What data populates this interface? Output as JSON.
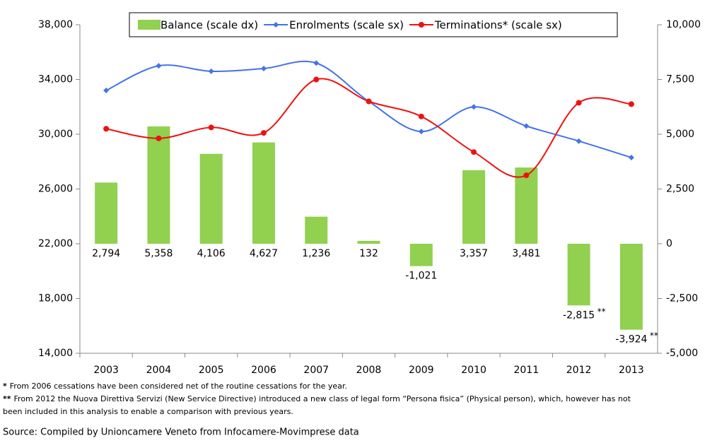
{
  "chart_data": {
    "type": "bar",
    "categories": [
      "2003",
      "2004",
      "2005",
      "2006",
      "2007",
      "2008",
      "2009",
      "2010",
      "2011",
      "2012",
      "2013"
    ],
    "series": [
      {
        "name": "Balance (scale dx)",
        "type": "bar",
        "axis": "y2",
        "color": "#92d050",
        "values": [
          2794,
          5358,
          4106,
          4627,
          1236,
          132,
          -1021,
          3357,
          3481,
          -2815,
          -3924
        ],
        "value_labels": [
          "2,794",
          "5,358",
          "4,106",
          "4,627",
          "1,236",
          "132",
          "-1,021",
          "3,357",
          "3,481",
          "-2,815",
          "-3,924"
        ],
        "value_notes": [
          null,
          null,
          null,
          null,
          null,
          null,
          null,
          null,
          null,
          "**",
          "**"
        ]
      },
      {
        "name": "Enrolments (scale sx)",
        "type": "line",
        "color": "#4472e8",
        "values": [
          33200,
          35000,
          34600,
          34800,
          35200,
          32400,
          30200,
          32000,
          30600,
          29500,
          28300
        ]
      },
      {
        "name": "Terminations* (scale sx)",
        "type": "line",
        "color": "#ee1111",
        "values": [
          30400,
          29700,
          30500,
          30100,
          34000,
          32400,
          31300,
          28700,
          27000,
          32300,
          32200
        ]
      }
    ],
    "ylim": [
      14000,
      38000
    ],
    "yticks": [
      {
        "value": 14000,
        "label": "14,000"
      },
      {
        "value": 18000,
        "label": "18,000"
      },
      {
        "value": 22000,
        "label": "22,000"
      },
      {
        "value": 26000,
        "label": "26,000"
      },
      {
        "value": 30000,
        "label": "30,000"
      },
      {
        "value": 34000,
        "label": "34,000"
      },
      {
        "value": 38000,
        "label": "38,000"
      }
    ],
    "y2lim": [
      -5000,
      10000
    ],
    "y2ticks": [
      {
        "value": -5000,
        "label": "-5,000"
      },
      {
        "value": -2500,
        "label": "-2,500"
      },
      0,
      {
        "value": 2500,
        "label": "2,500"
      },
      {
        "value": 5000,
        "label": "5,000"
      },
      {
        "value": 7500,
        "label": "7,500"
      },
      {
        "value": 10000,
        "label": "10,000"
      }
    ],
    "notes": [
      {
        "marker": "*",
        "text": "From 2006 cessations have been considered net of the routine cessations for the year."
      },
      {
        "marker": "**",
        "text": "From 2012 the Nuova Direttiva Servizi (New Service Directive) introduced a new class of legal form “Persona fisica” (Physical person), which, however has not"
      },
      {
        "marker": null,
        "text": "been included in this analysis to enable a comparison with previous years."
      }
    ],
    "source": "Source: Compiled by Unioncamere Veneto from Infocamere-Movimprese data"
  }
}
